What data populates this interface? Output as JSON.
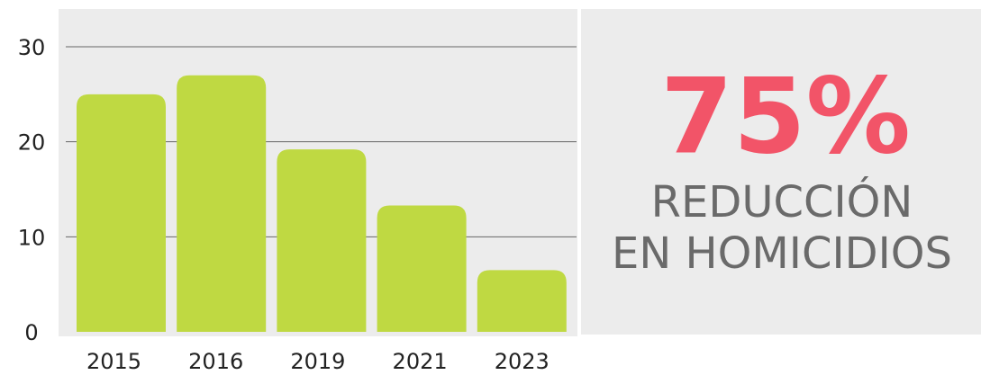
{
  "chart_data": {
    "type": "bar",
    "categories": [
      "2015",
      "2016",
      "2019",
      "2021",
      "2023"
    ],
    "values": [
      25,
      27,
      19.2,
      13.3,
      6.5
    ],
    "color": "#bfd942",
    "ylim": [
      0,
      30
    ],
    "yticks": [
      0,
      10,
      20,
      30
    ],
    "grid": true,
    "annotation": {
      "headline": "75%",
      "lines": [
        "REDUCCIÓN",
        "EN HOMICIDIOS"
      ]
    }
  }
}
